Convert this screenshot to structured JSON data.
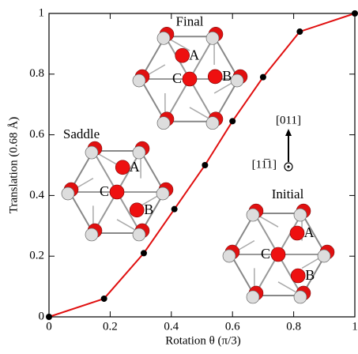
{
  "chart_data": {
    "type": "line",
    "xlabel": "Rotation θ  (π/3)",
    "ylabel": "Translation (0.68 Å)",
    "x": [
      0,
      0.18,
      0.31,
      0.41,
      0.51,
      0.6,
      0.7,
      0.82,
      1.0
    ],
    "series": [
      {
        "color": "#e01010",
        "values": [
          0,
          0.06,
          0.21,
          0.355,
          0.5,
          0.645,
          0.79,
          0.94,
          1.0
        ]
      }
    ],
    "xlim": [
      0,
      1
    ],
    "ylim": [
      0,
      1
    ],
    "xticks": [
      0,
      0.2,
      0.4,
      0.6,
      0.8,
      1
    ],
    "yticks": [
      0,
      0.2,
      0.4,
      0.6,
      0.8,
      1
    ],
    "insets": [
      {
        "label": "Final",
        "atoms": [
          "A",
          "B",
          "C"
        ]
      },
      {
        "label": "Saddle",
        "atoms": [
          "A",
          "B",
          "C"
        ]
      },
      {
        "label": "Initial",
        "atoms": [
          "A",
          "B",
          "C"
        ]
      }
    ],
    "directions": [
      "[011]",
      "[11̅1]"
    ]
  }
}
